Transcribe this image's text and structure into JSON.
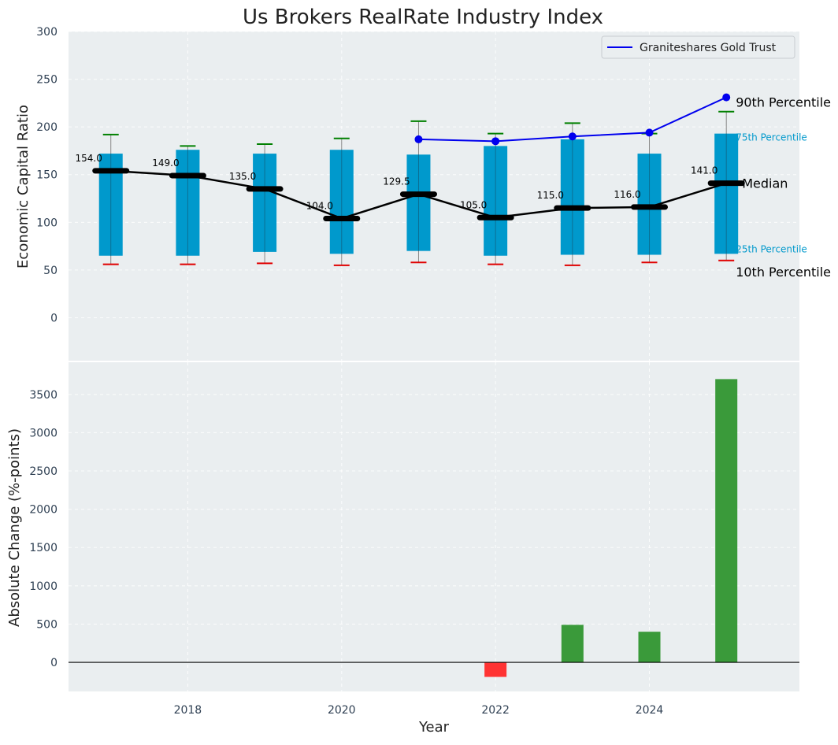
{
  "chart_data": [
    {
      "type": "box",
      "title": "Us Brokers RealRate Industry Index",
      "ylabel": "Economic Capital Ratio",
      "ylim": [
        -45,
        300
      ],
      "yticks": [
        0,
        50,
        100,
        150,
        200,
        250,
        300
      ],
      "xlim": [
        2016.45,
        2025.95
      ],
      "x": [
        2017,
        2018,
        2019,
        2020,
        2021,
        2022,
        2023,
        2024,
        2025
      ],
      "p10": [
        56,
        56,
        57,
        55,
        58,
        56,
        55,
        58,
        60
      ],
      "p25": [
        65,
        65,
        69,
        67,
        70,
        65,
        66,
        66,
        67
      ],
      "median": [
        154.0,
        149.0,
        135.0,
        104.0,
        129.5,
        105.0,
        115.0,
        116.0,
        141.0
      ],
      "median_labels": [
        "154.0",
        "149.0",
        "135.0",
        "104.0",
        "129.5",
        "105.0",
        "115.0",
        "116.0",
        "141.0"
      ],
      "p75": [
        172,
        176,
        172,
        176,
        171,
        180,
        187,
        172,
        193
      ],
      "p90": [
        192,
        180,
        182,
        188,
        206,
        193,
        204,
        193,
        216
      ],
      "series": [
        {
          "name": "Graniteshares Gold Trust",
          "x": [
            2021,
            2022,
            2023,
            2024,
            2025
          ],
          "values": [
            187,
            185,
            190,
            194,
            231
          ]
        }
      ],
      "annotations": {
        "p90": "90th Percentile",
        "p75": "75th Percentile",
        "median": "Median",
        "p25": "25th Percentile",
        "p10": "10th Percentile"
      },
      "legend_position": "top-right"
    },
    {
      "type": "bar",
      "xlabel": "Year",
      "ylabel": "Absolute Change (%-points)",
      "ylim": [
        -380,
        3920
      ],
      "yticks": [
        0,
        500,
        1000,
        1500,
        2000,
        2500,
        3000,
        3500
      ],
      "xticks": [
        2018,
        2020,
        2022,
        2024
      ],
      "x": [
        2022,
        2023,
        2024,
        2025
      ],
      "values": [
        -190,
        490,
        400,
        3700
      ]
    }
  ],
  "colors": {
    "plot_bg": "#eaeef0",
    "box": "#0099cc",
    "median": "#000000",
    "p90_cap": "#008000",
    "p10_cap": "#e00000",
    "series": "#0000ee",
    "positive": "#3a9a3a",
    "negative": "#ff3333",
    "p75_text": "#0099cc"
  }
}
